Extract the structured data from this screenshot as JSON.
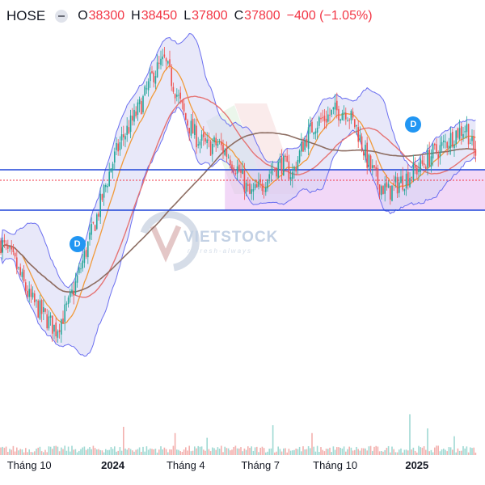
{
  "legend": {
    "symbol": "HOSE",
    "open_label": "O",
    "open": "38300",
    "high_label": "H",
    "high": "38450",
    "low_label": "L",
    "low": "37800",
    "close_label": "C",
    "close": "37800",
    "change": "−400 (−1.05%)"
  },
  "watermark": {
    "brand": "VIETSTOCK",
    "tagline": "refresh-always"
  },
  "dividend_marker_label": "D",
  "colors": {
    "up": "#26a69a",
    "down": "#ef5350",
    "band": "#6b6ff0",
    "band_fill": "#d6d5f4",
    "ma_short": "#f19a3a",
    "ma_mid": "#e57373",
    "ma_long": "#8d6e63",
    "hline": "#1e44d8",
    "zone": "#e7b8f1",
    "text_down": "#f23645",
    "marker": "#2196f3"
  },
  "chart_data": {
    "type": "candlestick",
    "price_range": [
      25500,
      45500
    ],
    "x_ticks": [
      {
        "label": "Tháng 10",
        "index": 16,
        "bold": false
      },
      {
        "label": "2024",
        "index": 63,
        "bold": true
      },
      {
        "label": "Tháng 4",
        "index": 104,
        "bold": false
      },
      {
        "label": "Tháng 7",
        "index": 146,
        "bold": false
      },
      {
        "label": "Tháng 10",
        "index": 188,
        "bold": false
      },
      {
        "label": "2025",
        "index": 234,
        "bold": true
      }
    ],
    "horizontal_levels": [
      37000,
      34500
    ],
    "dotted_level": 36350,
    "zone": {
      "start_index": 126,
      "end_index": 266,
      "top": 37000,
      "bottom": 34500
    },
    "dividend_markers": [
      {
        "index": 43,
        "price": 32400
      },
      {
        "index": 232,
        "price": 39800
      }
    ],
    "path": [
      [
        0,
        32500
      ],
      [
        8,
        31200
      ],
      [
        16,
        29100
      ],
      [
        24,
        28000
      ],
      [
        31,
        27100
      ],
      [
        38,
        28600
      ],
      [
        46,
        31300
      ],
      [
        54,
        34100
      ],
      [
        62,
        37200
      ],
      [
        68,
        38900
      ],
      [
        74,
        40000
      ],
      [
        80,
        41300
      ],
      [
        86,
        43000
      ],
      [
        92,
        43700
      ],
      [
        98,
        42000
      ],
      [
        104,
        40100
      ],
      [
        110,
        39000
      ],
      [
        116,
        38400
      ],
      [
        122,
        38600
      ],
      [
        128,
        37900
      ],
      [
        134,
        36900
      ],
      [
        140,
        35400
      ],
      [
        146,
        35900
      ],
      [
        152,
        37000
      ],
      [
        158,
        37400
      ],
      [
        164,
        36700
      ],
      [
        170,
        38600
      ],
      [
        176,
        39800
      ],
      [
        182,
        40200
      ],
      [
        188,
        40600
      ],
      [
        194,
        40700
      ],
      [
        200,
        39600
      ],
      [
        206,
        37600
      ],
      [
        212,
        36200
      ],
      [
        218,
        35600
      ],
      [
        224,
        36200
      ],
      [
        230,
        36700
      ],
      [
        236,
        37200
      ],
      [
        242,
        37900
      ],
      [
        248,
        38400
      ],
      [
        256,
        39300
      ],
      [
        262,
        39600
      ],
      [
        266,
        38100
      ]
    ],
    "volume_range": [
      0,
      180000
    ],
    "volume_spikes": [
      [
        69,
        90000
      ],
      [
        98,
        70000
      ],
      [
        116,
        55000
      ],
      [
        153,
        95000
      ],
      [
        175,
        70000
      ],
      [
        230,
        130000
      ],
      [
        240,
        85000
      ],
      [
        255,
        60000
      ]
    ]
  }
}
